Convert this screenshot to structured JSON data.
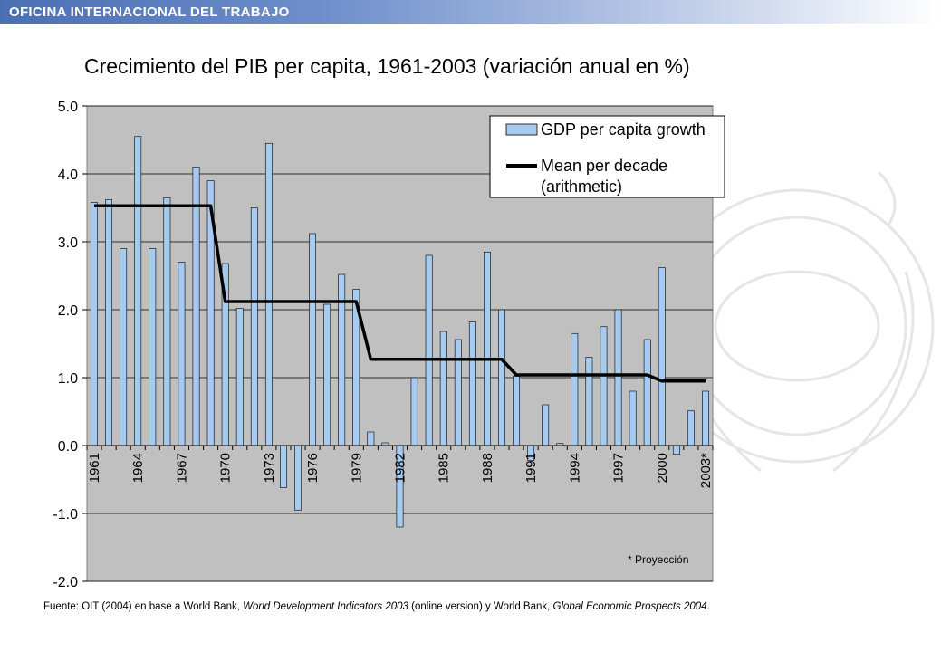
{
  "header": {
    "org_name": "OFICINA INTERNACIONAL DEL TRABAJO"
  },
  "colors": {
    "bar_fill": "#a6caf0",
    "bar_stroke": "#000000",
    "plot_bg": "#c0c0c0",
    "mean_line": "#000000",
    "banner": "#4a6fb3"
  },
  "chart_data": {
    "type": "bar",
    "title": "Crecimiento del PIB per capita, 1961-2003 (variación anual en %)",
    "xlabel": "",
    "ylabel": "",
    "ylim": [
      -2,
      5
    ],
    "yticks": [
      "5.0",
      "4.0",
      "3.0",
      "2.0",
      "1.0",
      "0.0",
      "-1.0",
      "-2.0"
    ],
    "grid": true,
    "legend_position": "top-right",
    "categories": [
      "1961",
      "1962",
      "1963",
      "1964",
      "1965",
      "1966",
      "1967",
      "1968",
      "1969",
      "1970",
      "1971",
      "1972",
      "1973",
      "1974",
      "1975",
      "1976",
      "1977",
      "1978",
      "1979",
      "1980",
      "1981",
      "1982",
      "1983",
      "1984",
      "1985",
      "1986",
      "1987",
      "1988",
      "1989",
      "1990",
      "1991",
      "1992",
      "1993",
      "1994",
      "1995",
      "1996",
      "1997",
      "1998",
      "1999",
      "2000",
      "2001",
      "2002",
      "2003*"
    ],
    "x_tick_labels": [
      {
        "index": 0,
        "label": "1961"
      },
      {
        "index": 3,
        "label": "1964"
      },
      {
        "index": 6,
        "label": "1967"
      },
      {
        "index": 9,
        "label": "1970"
      },
      {
        "index": 12,
        "label": "1973"
      },
      {
        "index": 15,
        "label": "1976"
      },
      {
        "index": 18,
        "label": "1979"
      },
      {
        "index": 21,
        "label": "1982"
      },
      {
        "index": 24,
        "label": "1985"
      },
      {
        "index": 27,
        "label": "1988"
      },
      {
        "index": 30,
        "label": "1991"
      },
      {
        "index": 33,
        "label": "1994"
      },
      {
        "index": 36,
        "label": "1997"
      },
      {
        "index": 39,
        "label": "2000"
      },
      {
        "index": 42,
        "label": "2003*"
      }
    ],
    "series": [
      {
        "name": "GDP per capita growth",
        "type": "bar",
        "values": [
          3.58,
          3.62,
          2.9,
          4.55,
          2.9,
          3.65,
          2.7,
          4.1,
          3.9,
          2.68,
          2.02,
          3.5,
          4.45,
          -0.62,
          -0.95,
          3.12,
          2.08,
          2.52,
          2.3,
          0.2,
          0.04,
          -1.2,
          1.0,
          2.8,
          1.68,
          1.56,
          1.82,
          2.85,
          2.0,
          1.02,
          -0.22,
          0.6,
          0.03,
          1.65,
          1.3,
          1.75,
          2.0,
          0.8,
          1.56,
          2.62,
          -0.13,
          0.51,
          0.8
        ]
      },
      {
        "name": "Mean per decade",
        "name_line2": "(arithmetic)",
        "type": "line",
        "values": [
          3.53,
          3.53,
          3.53,
          3.53,
          3.53,
          3.53,
          3.53,
          3.53,
          3.53,
          2.12,
          2.12,
          2.12,
          2.12,
          2.12,
          2.12,
          2.12,
          2.12,
          2.12,
          2.12,
          1.27,
          1.27,
          1.27,
          1.27,
          1.27,
          1.27,
          1.27,
          1.27,
          1.27,
          1.27,
          1.04,
          1.04,
          1.04,
          1.04,
          1.04,
          1.04,
          1.04,
          1.04,
          1.04,
          1.04,
          0.95,
          0.95,
          0.95,
          0.95
        ]
      }
    ],
    "annotation": "* Proyección"
  },
  "footnote": {
    "prefix": "Fuente: OIT (2004) en base a World Bank, ",
    "source1": "World Development Indicators 2003",
    "middle": " (online version) y World Bank, ",
    "source2": "Global Economic Prospects 2004",
    "suffix": "."
  }
}
